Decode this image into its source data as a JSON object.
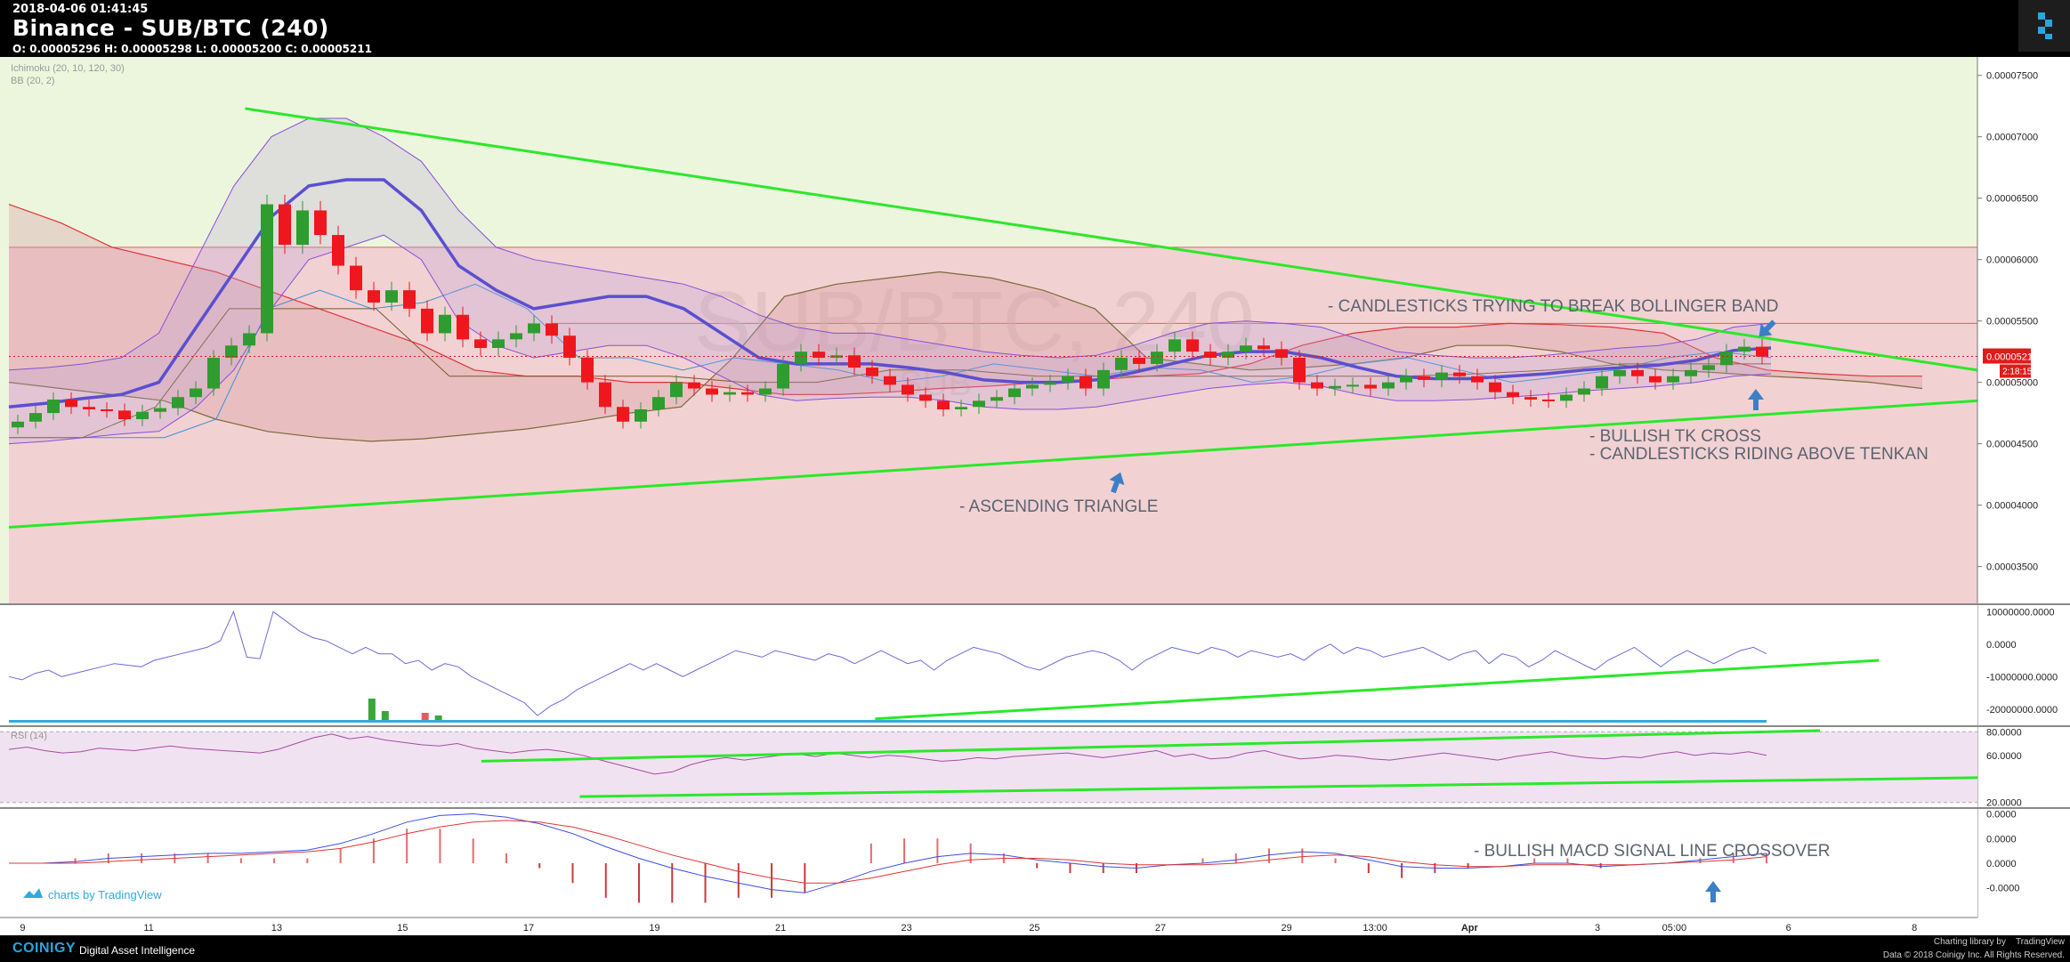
{
  "header": {
    "timestamp": "2018-04-06 01:41:45",
    "title": "Binance - SUB/BTC (240)",
    "ohlc": "O: 0.00005296 H: 0.00005298 L: 0.00005200 C: 0.00005211"
  },
  "watermark": {
    "main": "SUB/BTC, 240",
    "sub": "SUB"
  },
  "indicators": {
    "ichimoku": "Ichimoku (20, 10, 120, 30)",
    "bb": "BB (20, 2)",
    "rsi": "RSI (14)"
  },
  "price_label": "0.00005211",
  "countdown_label": "2:18:15",
  "tv_badge": "charts by TradingView",
  "annotations": {
    "bollinger": "- CANDLESTICKS TRYING TO BREAK BOLLINGER BAND",
    "tk_cross": "- BULLISH TK CROSS",
    "tenkan": "- CANDLESTICKS RIDING ABOVE TENKAN",
    "triangle": "- ASCENDING TRIANGLE",
    "macd": "- BULLISH MACD SIGNAL LINE CROSSOVER"
  },
  "footer": {
    "brand": "COINIGY",
    "tagline": "Digital Asset Intelligence",
    "charting_library": "Charting library by",
    "tradingview": "TradingView",
    "copyright": "Data © 2018 Coinigy Inc. All Rights Reserved."
  },
  "colors": {
    "bull": "#2e9c2e",
    "bear": "#f0161d",
    "triangle": "#2be82b",
    "arrow": "#3d7fc4",
    "annotation_text": "#5b6470",
    "price_badge": "#e01b1b"
  },
  "chart_data": {
    "type": "candlestick",
    "title": "Binance - SUB/BTC (240)",
    "x_ticks": [
      "9",
      "11",
      "13",
      "15",
      "17",
      "19",
      "21",
      "23",
      "25",
      "27",
      "29",
      "13:00",
      "Apr",
      "3",
      "05:00",
      "6",
      "8"
    ],
    "panes": [
      {
        "name": "price",
        "ylim": [
          3.2e-05,
          7.65e-05
        ],
        "y_ticks": [
          "0.00007500",
          "0.00007000",
          "0.00006500",
          "0.00006000",
          "0.00005500",
          "0.00005000",
          "0.00004500",
          "0.00004000",
          "0.00003500"
        ],
        "last_close": 5.211e-05,
        "close_approx": [
          4.68e-05,
          4.75e-05,
          4.86e-05,
          4.8e-05,
          4.78e-05,
          4.77e-05,
          4.7e-05,
          4.76e-05,
          4.79e-05,
          4.88e-05,
          4.95e-05,
          5.2e-05,
          5.3e-05,
          5.4e-05,
          6.45e-05,
          6.12e-05,
          6.4e-05,
          6.2e-05,
          5.95e-05,
          5.75e-05,
          5.65e-05,
          5.75e-05,
          5.6e-05,
          5.4e-05,
          5.55e-05,
          5.35e-05,
          5.28e-05,
          5.35e-05,
          5.4e-05,
          5.48e-05,
          5.38e-05,
          5.2e-05,
          5e-05,
          4.8e-05,
          4.68e-05,
          4.78e-05,
          4.88e-05,
          5e-05,
          4.95e-05,
          4.9e-05,
          4.92e-05,
          4.9e-05,
          4.95e-05,
          5.15e-05,
          5.25e-05,
          5.2e-05,
          5.22e-05,
          5.12e-05,
          5.05e-05,
          4.98e-05,
          4.9e-05,
          4.85e-05,
          4.78e-05,
          4.8e-05,
          4.85e-05,
          4.88e-05,
          4.95e-05,
          4.98e-05,
          5e-05,
          5.05e-05,
          4.95e-05,
          5.1e-05,
          5.2e-05,
          5.15e-05,
          5.25e-05,
          5.35e-05,
          5.25e-05,
          5.2e-05,
          5.25e-05,
          5.3e-05,
          5.27e-05,
          5.2e-05,
          5e-05,
          4.95e-05,
          4.97e-05,
          4.98e-05,
          4.95e-05,
          5e-05,
          5.05e-05,
          5.02e-05,
          5.08e-05,
          5.05e-05,
          5e-05,
          4.92e-05,
          4.88e-05,
          4.86e-05,
          4.85e-05,
          4.9e-05,
          4.95e-05,
          5.05e-05,
          5.1e-05,
          5.05e-05,
          5e-05,
          5.05e-05,
          5.1e-05,
          5.14e-05,
          5.25e-05,
          5.29e-05,
          5.21e-05
        ],
        "ichimoku": {
          "tenkan_approx": [
            4.55e-05,
            4.55e-05,
            4.55e-05,
            4.55e-05,
            4.7e-05,
            5.6e-05,
            5.75e-05,
            5.6e-05,
            5.65e-05,
            5.8e-05,
            5.6e-05,
            5.2e-05,
            5.2e-05,
            5.1e-05,
            5.2e-05,
            5.15e-05,
            5.1e-05,
            5e-05,
            5.05e-05,
            5.15e-05,
            5.1e-05,
            5.05e-05,
            5.12e-05,
            5.1e-05,
            5e-05,
            5.05e-05,
            5.15e-05,
            5.2e-05,
            5.1e-05,
            5e-05,
            5.05e-05,
            5.1e-05,
            5.2e-05,
            5.25e-05,
            5.2e-05
          ],
          "kijun_approx": [
            4.55e-05,
            4.55e-05,
            4.8e-05,
            5.6e-05,
            5.6e-05,
            5.6e-05,
            5.05e-05,
            5.05e-05,
            5.05e-05,
            5.05e-05,
            5e-05,
            5e-05,
            5.1e-05,
            5.1e-05,
            5.05e-05,
            5.05e-05,
            5.05e-05,
            5.05e-05,
            5.05e-05,
            5.05e-05,
            5.07e-05,
            5.1e-05,
            5.15e-05,
            5.15e-05,
            5.15e-05
          ],
          "senkou_a_approx": [
            6.45e-05,
            6.3e-05,
            6.1e-05,
            6e-05,
            5.9e-05,
            5.75e-05,
            5.6e-05,
            5.45e-05,
            5.3e-05,
            5.1e-05,
            5.05e-05,
            5.05e-05,
            5e-05,
            5e-05,
            4.95e-05,
            4.9e-05,
            4.9e-05,
            4.92e-05,
            4.95e-05,
            4.97e-05,
            5e-05,
            5.02e-05,
            5.05e-05,
            5.07e-05,
            5.15e-05,
            5.3e-05,
            5.4e-05,
            5.45e-05,
            5.45e-05,
            5.48e-05,
            5.47e-05,
            5.45e-05,
            5.4e-05,
            5.2e-05,
            5.1e-05,
            5.07e-05,
            5.05e-05,
            5.05e-05
          ],
          "senkou_b_approx": [
            5e-05,
            4.95e-05,
            4.9e-05,
            4.85e-05,
            4.7e-05,
            4.6e-05,
            4.55e-05,
            4.52e-05,
            4.54e-05,
            4.58e-05,
            4.62e-05,
            4.68e-05,
            4.75e-05,
            4.8e-05,
            5.2e-05,
            5.7e-05,
            5.8e-05,
            5.85e-05,
            5.9e-05,
            5.85e-05,
            5.75e-05,
            5.6e-05,
            5.2e-05,
            5.15e-05,
            5.1e-05,
            5.12e-05,
            5.15e-05,
            5.2e-05,
            5.3e-05,
            5.3e-05,
            5.25e-05,
            5.15e-05,
            5.1e-05,
            5.08e-05,
            5.05e-05,
            5.03e-05,
            5e-05,
            4.95e-05
          ]
        },
        "bollinger": {
          "middle_approx": [
            4.8e-05,
            4.83e-05,
            4.87e-05,
            4.9e-05,
            5e-05,
            5.45e-05,
            5.9e-05,
            6.35e-05,
            6.6e-05,
            6.65e-05,
            6.65e-05,
            6.4e-05,
            5.95e-05,
            5.75e-05,
            5.6e-05,
            5.65e-05,
            5.7e-05,
            5.7e-05,
            5.6e-05,
            5.4e-05,
            5.2e-05,
            5.15e-05,
            5.15e-05,
            5.15e-05,
            5.12e-05,
            5.08e-05,
            5.02e-05,
            5e-05,
            5e-05,
            5.02e-05,
            5.08e-05,
            5.15e-05,
            5.22e-05,
            5.25e-05,
            5.25e-05,
            5.2e-05,
            5.12e-05,
            5.05e-05,
            5.03e-05,
            5.03e-05,
            5.05e-05,
            5.07e-05,
            5.1e-05,
            5.12e-05,
            5.14e-05,
            5.18e-05,
            5.26e-05,
            5.28e-05
          ],
          "upper_approx": [
            5.1e-05,
            5.12e-05,
            5.15e-05,
            5.2e-05,
            5.4e-05,
            6e-05,
            6.6e-05,
            7e-05,
            7.15e-05,
            7.15e-05,
            7e-05,
            6.8e-05,
            6.4e-05,
            6.1e-05,
            6e-05,
            5.95e-05,
            5.9e-05,
            5.85e-05,
            5.8e-05,
            5.7e-05,
            5.55e-05,
            5.45e-05,
            5.4e-05,
            5.4e-05,
            5.35e-05,
            5.3e-05,
            5.25e-05,
            5.22e-05,
            5.2e-05,
            5.22e-05,
            5.3e-05,
            5.4e-05,
            5.48e-05,
            5.5e-05,
            5.48e-05,
            5.45e-05,
            5.35e-05,
            5.25e-05,
            5.22e-05,
            5.2e-05,
            5.2e-05,
            5.22e-05,
            5.25e-05,
            5.28e-05,
            5.3e-05,
            5.35e-05,
            5.45e-05,
            5.48e-05
          ],
          "lower_approx": [
            4.5e-05,
            4.52e-05,
            4.55e-05,
            4.58e-05,
            4.6e-05,
            4.8e-05,
            5.1e-05,
            5.6e-05,
            6e-05,
            6.1e-05,
            6.2e-05,
            6e-05,
            5.5e-05,
            5.3e-05,
            5.2e-05,
            5.25e-05,
            5.3e-05,
            5.3e-05,
            5.2e-05,
            5.05e-05,
            4.9e-05,
            4.85e-05,
            4.87e-05,
            4.88e-05,
            4.88e-05,
            4.85e-05,
            4.8e-05,
            4.78e-05,
            4.78e-05,
            4.8e-05,
            4.85e-05,
            4.9e-05,
            4.95e-05,
            4.98e-05,
            5e-05,
            4.97e-05,
            4.9e-05,
            4.85e-05,
            4.85e-05,
            4.86e-05,
            4.88e-05,
            4.9e-05,
            4.93e-05,
            4.95e-05,
            4.97e-05,
            5e-05,
            5.05e-05,
            5.07e-05
          ]
        },
        "trendlines_approx": [
          {
            "name": "triangle-upper",
            "from": [
              0.12,
              7.23e-05
            ],
            "to": [
              1.0,
              5.1e-05
            ]
          },
          {
            "name": "triangle-lower",
            "from": [
              0.0,
              3.82e-05
            ],
            "to": [
              1.0,
              4.85e-05
            ]
          }
        ]
      },
      {
        "name": "volume-obv",
        "ylim": [
          -25000000,
          12000000
        ],
        "y_ticks": [
          "10000000.0000",
          "0.0000",
          "-10000000.0000",
          "-20000000.0000"
        ],
        "obv_approx": [
          -10000000,
          -11000000,
          -9000000,
          -8000000,
          -10000000,
          -9000000,
          -8000000,
          -7000000,
          -6000000,
          -6500000,
          -7000000,
          -5000000,
          -4000000,
          -3000000,
          -2000000,
          -1000000,
          1000000,
          10000000,
          -4000000,
          -4500000,
          10000000,
          7000000,
          4000000,
          2000000,
          1000000,
          -1000000,
          -3000000,
          -1000000,
          -3000000,
          -3000000,
          -6000000,
          -5000000,
          -8000000,
          -6000000,
          -7000000,
          -10000000,
          -12000000,
          -14000000,
          -16000000,
          -18000000,
          -22000000,
          -19000000,
          -17000000,
          -14000000,
          -12000000,
          -10000000,
          -8000000,
          -6000000,
          -8000000,
          -6000000,
          -8000000,
          -10000000,
          -8000000,
          -6000000,
          -4000000,
          -2000000,
          -3000000,
          -4000000,
          -2000000,
          -3000000,
          -4000000,
          -5000000,
          -3000000,
          -4000000,
          -6000000,
          -4000000,
          -2000000,
          -4000000,
          -6000000,
          -5000000,
          -8000000,
          -5000000,
          -3000000,
          -1000000,
          -2000000,
          -3000000,
          -5000000,
          -7000000,
          -8000000,
          -6000000,
          -4000000,
          -3000000,
          -2000000,
          -3000000,
          -5000000,
          -8000000,
          -5000000,
          -3000000,
          -1000000,
          -2000000,
          -3000000,
          -1000000,
          -2000000,
          -4000000,
          -2000000,
          -3000000,
          -4000000,
          -3000000,
          -5000000,
          -2000000,
          0,
          -3000000,
          -1000000,
          -2000000,
          -4000000,
          -3000000,
          -2000000,
          -1000000,
          -3000000,
          -5000000,
          -3000000,
          -2000000,
          -6000000,
          -3000000,
          -4000000,
          -7000000,
          -5000000,
          -2000000,
          -4000000,
          -6000000,
          -8000000,
          -5000000,
          -3000000,
          -1000000,
          -4000000,
          -7000000,
          -4000000,
          -2000000,
          -4000000,
          -6000000,
          -4000000,
          -2000000,
          -1000000,
          -3000000
        ],
        "trendline_approx": {
          "from": [
            0.44,
            -23000000
          ],
          "to": [
            0.95,
            -5000000
          ]
        }
      },
      {
        "name": "rsi",
        "ylim": [
          16,
          84
        ],
        "y_ticks": [
          "80.0000",
          "60.0000",
          "20.0000"
        ],
        "rsi_approx": [
          65,
          67,
          64,
          62,
          63,
          66,
          65,
          64,
          66,
          68,
          66,
          65,
          64,
          63,
          62,
          65,
          70,
          75,
          78,
          74,
          76,
          73,
          71,
          69,
          68,
          70,
          66,
          64,
          62,
          64,
          65,
          63,
          60,
          56,
          52,
          48,
          44,
          46,
          52,
          56,
          58,
          56,
          58,
          60,
          61,
          59,
          62,
          60,
          58,
          60,
          59,
          57,
          55,
          56,
          58,
          57,
          59,
          60,
          61,
          62,
          60,
          58,
          60,
          62,
          64,
          59,
          61,
          57,
          58,
          62,
          64,
          60,
          57,
          58,
          60,
          59,
          57,
          56,
          58,
          60,
          62,
          60,
          58,
          56,
          59,
          61,
          63,
          60,
          58,
          57,
          59,
          58,
          61,
          63,
          60,
          62,
          61,
          63,
          60
        ],
        "trendlines_approx": [
          {
            "from": [
              0.24,
              55
            ],
            "to": [
              0.92,
              81
            ]
          },
          {
            "from": [
              0.29,
              25
            ],
            "to": [
              1.0,
              41
            ]
          }
        ]
      },
      {
        "name": "macd",
        "ylim": [
          -3.3e-06,
          3.3e-06
        ],
        "y_ticks": [
          "0.0000",
          "0.0000",
          "0.0000",
          "-0.0000"
        ],
        "macd_approx": [
          0.0,
          0.0,
          1e-07,
          3e-07,
          4e-07,
          5e-07,
          6e-07,
          6e-07,
          7e-07,
          8e-07,
          1.2e-06,
          1.8e-06,
          2.5e-06,
          2.9e-06,
          3e-06,
          2.8e-06,
          2.4e-06,
          1.8e-06,
          1e-06,
          3e-07,
          -3e-07,
          -8e-07,
          -1.2e-06,
          -1.6e-06,
          -1.8e-06,
          -1.2e-06,
          -5e-07,
          0.0,
          4e-07,
          6e-07,
          5e-07,
          2e-07,
          0.0,
          -2e-07,
          -3e-07,
          -1e-07,
          0.0,
          2e-07,
          5e-07,
          7e-07,
          6e-07,
          2e-07,
          -2e-07,
          -3e-07,
          -3e-07,
          -2e-07,
          0.0,
          0.0,
          -2e-07,
          -1e-07,
          0.0,
          2e-07,
          4e-07,
          6e-07
        ],
        "signal_approx": [
          0.0,
          0.0,
          0.0,
          1e-07,
          2e-07,
          3e-07,
          4e-07,
          5e-07,
          6e-07,
          7e-07,
          9e-07,
          1.3e-06,
          1.8e-06,
          2.2e-06,
          2.5e-06,
          2.6e-06,
          2.5e-06,
          2.2e-06,
          1.7e-06,
          1.1e-06,
          5e-07,
          0.0,
          -5e-07,
          -9e-07,
          -1.2e-06,
          -1.2e-06,
          -9e-07,
          -5e-07,
          -1e-07,
          2e-07,
          3e-07,
          3e-07,
          2e-07,
          0.0,
          -1e-07,
          -1e-07,
          -1e-07,
          0.0,
          2e-07,
          4e-07,
          5e-07,
          4e-07,
          1e-07,
          -1e-07,
          -2e-07,
          -2e-07,
          -1e-07,
          -1e-07,
          -1e-07,
          -1e-07,
          0.0,
          1e-07,
          2e-07,
          4e-07
        ]
      }
    ]
  }
}
